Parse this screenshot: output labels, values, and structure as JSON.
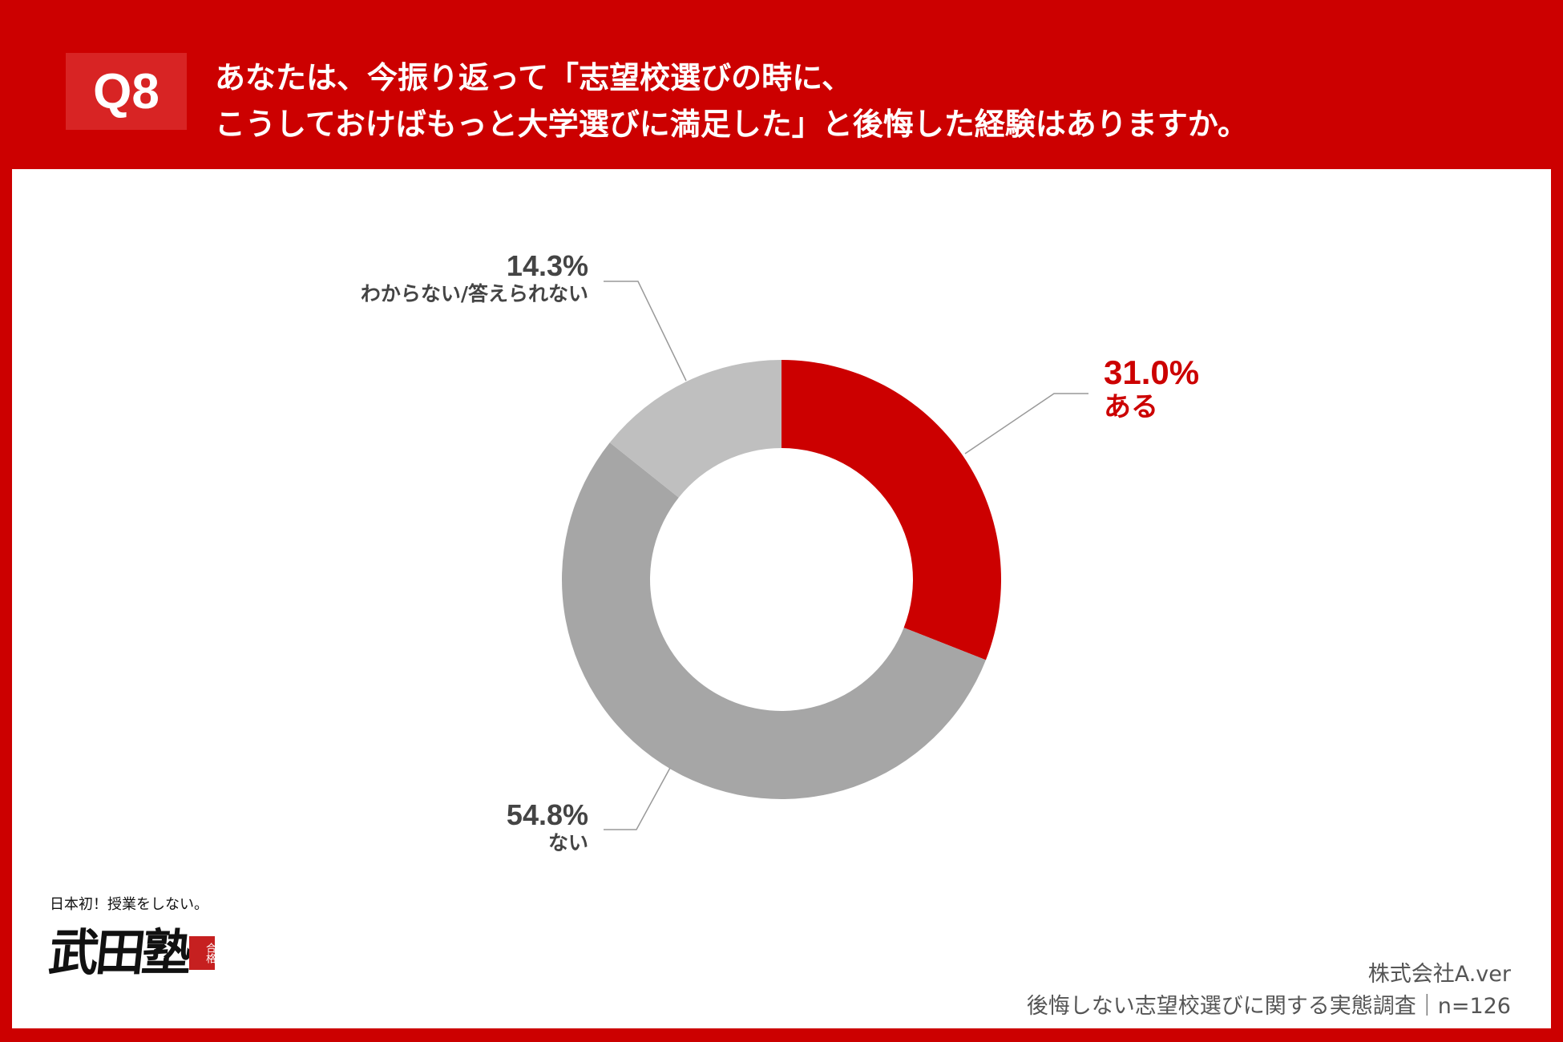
{
  "header": {
    "q_label": "Q8",
    "title_line1": "あなたは、今振り返って「志望校選びの時に、",
    "title_line2": "こうしておけばもっと大学選びに満足した」と後悔した経験はありますか。"
  },
  "chart_data": {
    "type": "pie",
    "donut": true,
    "start": "top",
    "direction": "clockwise",
    "slices": [
      {
        "label": "ある",
        "value": 31.0,
        "display": "31.0%",
        "color": "#cc0000"
      },
      {
        "label": "ない",
        "value": 54.8,
        "display": "54.8%",
        "color": "#a6a6a6"
      },
      {
        "label": "わからない/答えられない",
        "value": 14.3,
        "display": "14.3%",
        "color": "#bfbfbf"
      }
    ]
  },
  "logo": {
    "tagline": "日本初！授業をしない。",
    "name": "武田塾",
    "stamp": "合格"
  },
  "source": {
    "company": "株式会社A.ver",
    "survey": "後悔しない志望校選びに関する実態調査｜n=126"
  }
}
